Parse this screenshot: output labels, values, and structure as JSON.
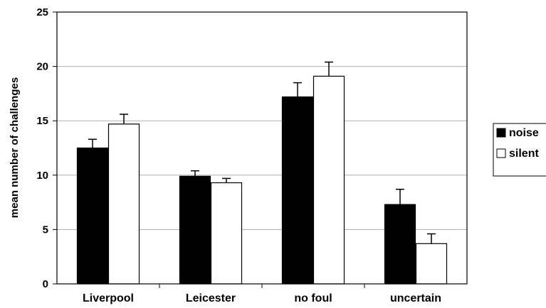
{
  "chart_data": {
    "type": "bar",
    "title": "",
    "xlabel": "",
    "ylabel": "mean number of challenges",
    "ylim": [
      0,
      25
    ],
    "yticks": [
      0,
      5,
      10,
      15,
      20,
      25
    ],
    "grid": true,
    "legend_position": "right",
    "categories": [
      "Liverpool",
      "Leicester",
      "no foul",
      "uncertain"
    ],
    "series": [
      {
        "name": "noise",
        "color": "#000000",
        "values": [
          12.5,
          9.9,
          17.2,
          7.3
        ],
        "errors": [
          0.8,
          0.5,
          1.3,
          1.4
        ]
      },
      {
        "name": "silent",
        "color": "#ffffff",
        "values": [
          14.7,
          9.3,
          19.1,
          3.7
        ],
        "errors": [
          0.9,
          0.4,
          1.3,
          0.9
        ]
      }
    ]
  }
}
